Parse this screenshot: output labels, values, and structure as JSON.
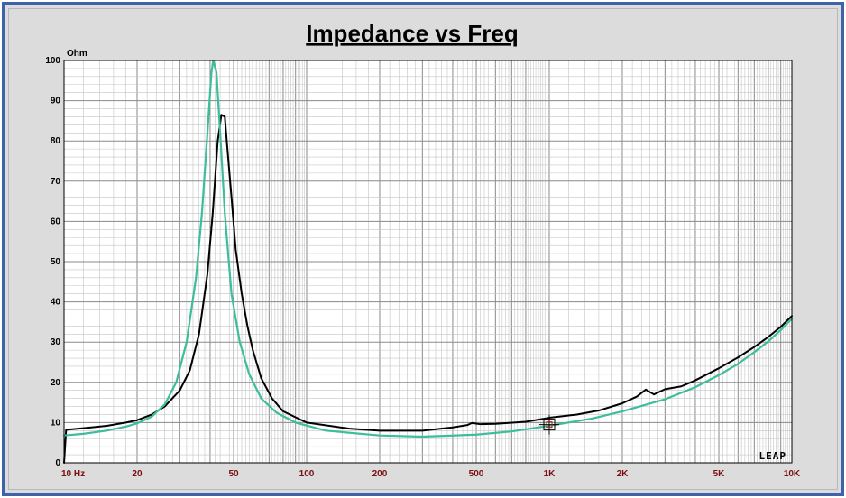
{
  "chart_data": {
    "type": "line",
    "title": "Impedance vs Freq",
    "ylabel": "Ohm",
    "xscale": "log",
    "xlim": [
      10,
      10000
    ],
    "ylim": [
      0,
      100
    ],
    "grid": true,
    "yticks": [
      0,
      10,
      20,
      30,
      40,
      50,
      60,
      70,
      80,
      90,
      100
    ],
    "xticks": [
      {
        "value": 10,
        "label": "10  Hz"
      },
      {
        "value": 20,
        "label": "20"
      },
      {
        "value": 50,
        "label": "50"
      },
      {
        "value": 100,
        "label": "100"
      },
      {
        "value": 200,
        "label": "200"
      },
      {
        "value": 500,
        "label": "500"
      },
      {
        "value": 1000,
        "label": "1K"
      },
      {
        "value": 2000,
        "label": "2K"
      },
      {
        "value": 5000,
        "label": "5K"
      },
      {
        "value": 10000,
        "label": "10K"
      }
    ],
    "series": [
      {
        "color": "#000000",
        "points": [
          [
            10,
            0
          ],
          [
            10.2,
            8.2
          ],
          [
            12,
            8.6
          ],
          [
            15,
            9.2
          ],
          [
            18,
            10.0
          ],
          [
            20,
            10.6
          ],
          [
            23,
            12.0
          ],
          [
            26,
            14.0
          ],
          [
            30,
            18.0
          ],
          [
            33,
            23.0
          ],
          [
            36,
            32.0
          ],
          [
            39,
            47.0
          ],
          [
            41,
            62.0
          ],
          [
            43,
            80.0
          ],
          [
            44.5,
            86.5
          ],
          [
            46,
            86.0
          ],
          [
            47,
            79.0
          ],
          [
            49,
            66.0
          ],
          [
            51,
            53.0
          ],
          [
            54,
            42.0
          ],
          [
            57,
            34.0
          ],
          [
            60,
            28.0
          ],
          [
            65,
            21.0
          ],
          [
            72,
            16.0
          ],
          [
            80,
            12.8
          ],
          [
            100,
            10.0
          ],
          [
            150,
            8.5
          ],
          [
            200,
            8.0
          ],
          [
            300,
            8.0
          ],
          [
            400,
            8.8
          ],
          [
            460,
            9.4
          ],
          [
            480,
            9.9
          ],
          [
            520,
            9.6
          ],
          [
            600,
            9.7
          ],
          [
            800,
            10.2
          ],
          [
            1000,
            11.2
          ],
          [
            1300,
            12.0
          ],
          [
            1600,
            13.0
          ],
          [
            2000,
            14.8
          ],
          [
            2300,
            16.5
          ],
          [
            2500,
            18.2
          ],
          [
            2700,
            17.0
          ],
          [
            3000,
            18.3
          ],
          [
            3500,
            19.0
          ],
          [
            4000,
            20.5
          ],
          [
            5000,
            23.5
          ],
          [
            6000,
            26.2
          ],
          [
            7000,
            28.8
          ],
          [
            8000,
            31.3
          ],
          [
            9000,
            33.8
          ],
          [
            10000,
            36.5
          ]
        ]
      },
      {
        "color": "#3dbd9b",
        "points": [
          [
            10,
            6.8
          ],
          [
            12,
            7.2
          ],
          [
            15,
            8.0
          ],
          [
            18,
            9.0
          ],
          [
            20,
            9.8
          ],
          [
            23,
            11.5
          ],
          [
            26,
            14.5
          ],
          [
            29,
            20.0
          ],
          [
            32,
            30.0
          ],
          [
            35,
            46.0
          ],
          [
            37,
            62.0
          ],
          [
            39,
            82.0
          ],
          [
            40.5,
            97.0
          ],
          [
            41.2,
            100.0
          ],
          [
            42.5,
            97.0
          ],
          [
            44,
            82.0
          ],
          [
            46,
            62.0
          ],
          [
            49,
            42.0
          ],
          [
            53,
            30.0
          ],
          [
            58,
            22.0
          ],
          [
            65,
            16.0
          ],
          [
            75,
            12.5
          ],
          [
            90,
            10.0
          ],
          [
            120,
            8.0
          ],
          [
            200,
            6.8
          ],
          [
            300,
            6.5
          ],
          [
            500,
            7.0
          ],
          [
            700,
            7.8
          ],
          [
            1000,
            9.2
          ],
          [
            1500,
            11.0
          ],
          [
            2000,
            12.8
          ],
          [
            3000,
            15.8
          ],
          [
            4000,
            18.8
          ],
          [
            5000,
            21.8
          ],
          [
            6000,
            24.6
          ],
          [
            7000,
            27.5
          ],
          [
            8000,
            30.2
          ],
          [
            9000,
            33.0
          ],
          [
            10000,
            35.8
          ]
        ]
      }
    ],
    "annotations": {
      "logo": "LEAP",
      "cursor_marker": {
        "x": 1000,
        "y": 9.5
      }
    }
  }
}
